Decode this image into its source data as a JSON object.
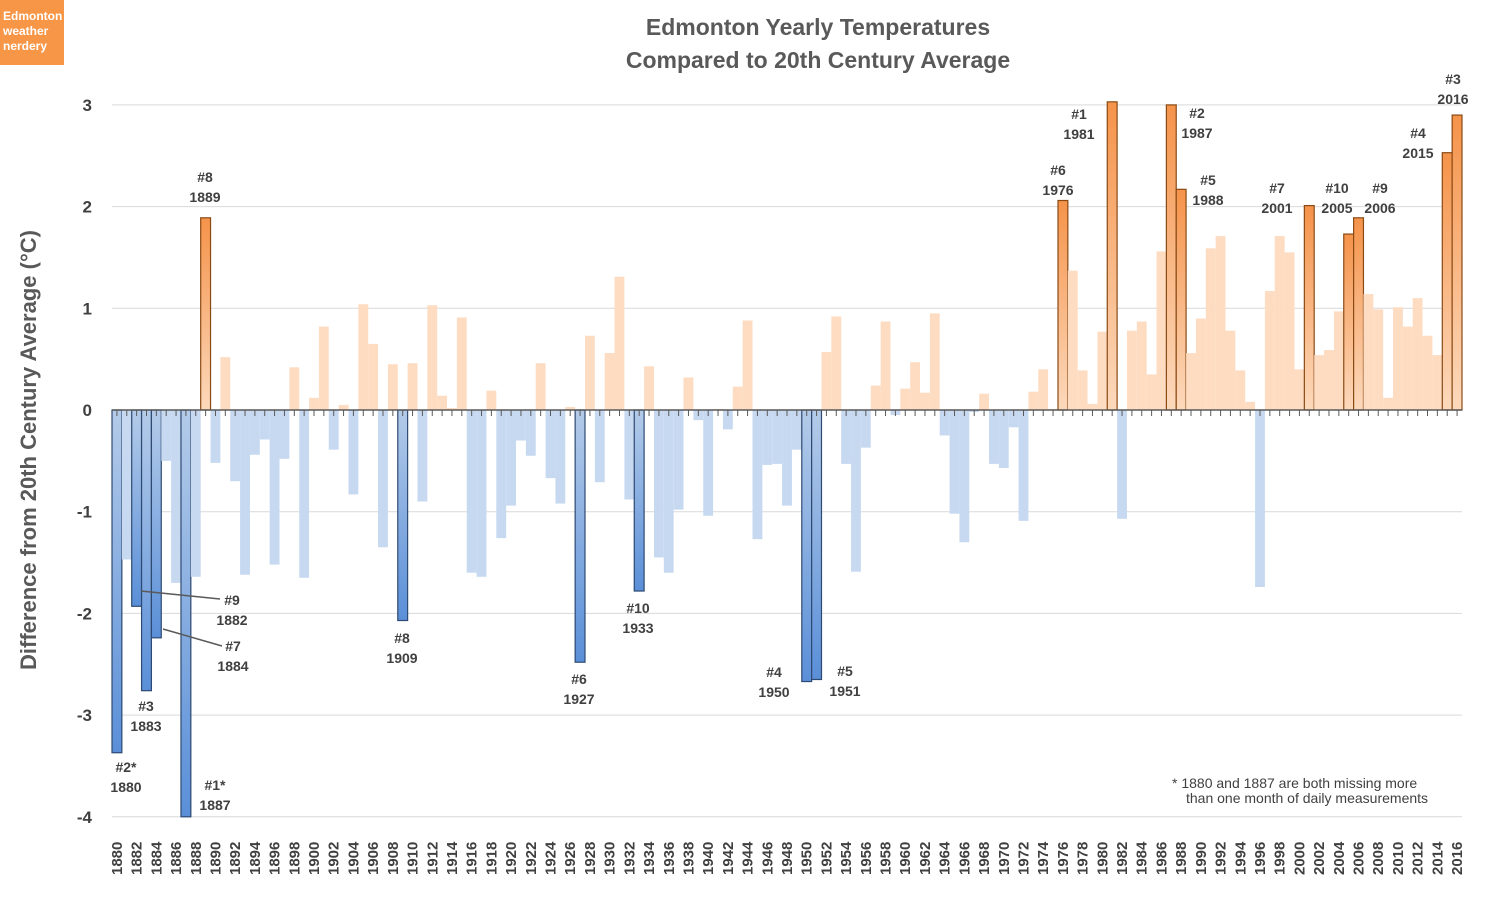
{
  "logo": {
    "text": "Edmonton weather nerdery",
    "color": "#f79646"
  },
  "chart_data": {
    "type": "bar",
    "title": [
      "Edmonton Yearly Temperatures",
      "Compared to 20th Century Average"
    ],
    "xlabel": "",
    "ylabel": "Difference from 20th Century Average (°C)",
    "ylim": [
      -4,
      3
    ],
    "yticks": [
      3,
      2,
      1,
      0,
      -1,
      -2,
      -3,
      -4
    ],
    "grid": true,
    "x_start": 1880,
    "x_end": 2016,
    "xtick_step": 2,
    "values": [
      -3.37,
      -1.47,
      -1.93,
      -2.76,
      -2.24,
      -0.5,
      -1.7,
      -4.0,
      -1.64,
      1.89,
      -0.52,
      0.52,
      -0.7,
      -1.62,
      -0.44,
      -0.29,
      -1.52,
      -0.48,
      0.42,
      -1.65,
      0.12,
      0.82,
      -0.39,
      0.05,
      -0.83,
      1.04,
      0.65,
      -1.35,
      0.45,
      -2.07,
      0.46,
      -0.9,
      1.03,
      0.14,
      0.02,
      0.91,
      -1.6,
      -1.64,
      0.19,
      -1.26,
      -0.94,
      -0.3,
      -0.45,
      0.46,
      -0.67,
      -0.92,
      0.03,
      -2.48,
      0.73,
      -0.71,
      0.56,
      1.31,
      -0.88,
      -1.78,
      0.43,
      -1.45,
      -1.6,
      -0.98,
      0.32,
      -0.1,
      -1.04,
      0.01,
      -0.19,
      0.23,
      0.88,
      -1.27,
      -0.54,
      -0.53,
      -0.94,
      -0.39,
      -2.67,
      -2.65,
      0.57,
      0.92,
      -0.53,
      -1.59,
      -0.37,
      0.24,
      0.87,
      -0.05,
      0.21,
      0.47,
      0.17,
      0.95,
      -0.25,
      -1.02,
      -1.3,
      -0.02,
      0.16,
      -0.53,
      -0.57,
      -0.17,
      -1.09,
      0.18,
      0.4,
      0.01,
      2.06,
      1.37,
      0.39,
      0.06,
      0.77,
      3.03,
      -1.07,
      0.78,
      0.87,
      0.35,
      1.56,
      3.0,
      2.17,
      0.56,
      0.9,
      1.59,
      1.71,
      0.78,
      0.39,
      0.08,
      -1.74,
      1.17,
      1.71,
      1.55,
      0.4,
      2.01,
      0.54,
      0.59,
      0.97,
      1.73,
      1.89,
      1.14,
      0.99,
      0.12,
      1.01,
      0.82,
      1.1,
      0.73,
      0.54,
      2.53,
      2.9
    ],
    "annotations": [
      {
        "rank": "#2*",
        "year": "1880",
        "type": "cold"
      },
      {
        "rank": "#3",
        "year": "1883",
        "type": "cold"
      },
      {
        "rank": "#1*",
        "year": "1887",
        "type": "cold"
      },
      {
        "rank": "#9",
        "year": "1882",
        "type": "cold"
      },
      {
        "rank": "#7",
        "year": "1884",
        "type": "cold"
      },
      {
        "rank": "#8",
        "year": "1909",
        "type": "cold"
      },
      {
        "rank": "#6",
        "year": "1927",
        "type": "cold"
      },
      {
        "rank": "#10",
        "year": "1933",
        "type": "cold"
      },
      {
        "rank": "#4",
        "year": "1950",
        "type": "cold"
      },
      {
        "rank": "#5",
        "year": "1951",
        "type": "cold"
      },
      {
        "rank": "#8",
        "year": "1889",
        "type": "warm"
      },
      {
        "rank": "#6",
        "year": "1976",
        "type": "warm"
      },
      {
        "rank": "#1",
        "year": "1981",
        "type": "warm"
      },
      {
        "rank": "#2",
        "year": "1987",
        "type": "warm"
      },
      {
        "rank": "#5",
        "year": "1988",
        "type": "warm"
      },
      {
        "rank": "#7",
        "year": "2001",
        "type": "warm"
      },
      {
        "rank": "#10",
        "year": "2005",
        "type": "warm"
      },
      {
        "rank": "#9",
        "year": "2006",
        "type": "warm"
      },
      {
        "rank": "#4",
        "year": "2015",
        "type": "warm"
      },
      {
        "rank": "#3",
        "year": "2016",
        "type": "warm",
        "highlight": "#e00000"
      }
    ],
    "footnote": [
      "* 1880 and 1887 are both missing more",
      "than one month of daily measurements"
    ],
    "colors": {
      "warm_top": "#f5934a",
      "warm_bottom": "#fcd9bc",
      "warm_light": "#fddcc2",
      "cold_top": "#b4cbe9",
      "cold_bottom": "#5a8fd8",
      "cold_light": "#c7d9f0",
      "warm_outline": "#8a4a14",
      "cold_outline": "#2e4a72"
    }
  }
}
